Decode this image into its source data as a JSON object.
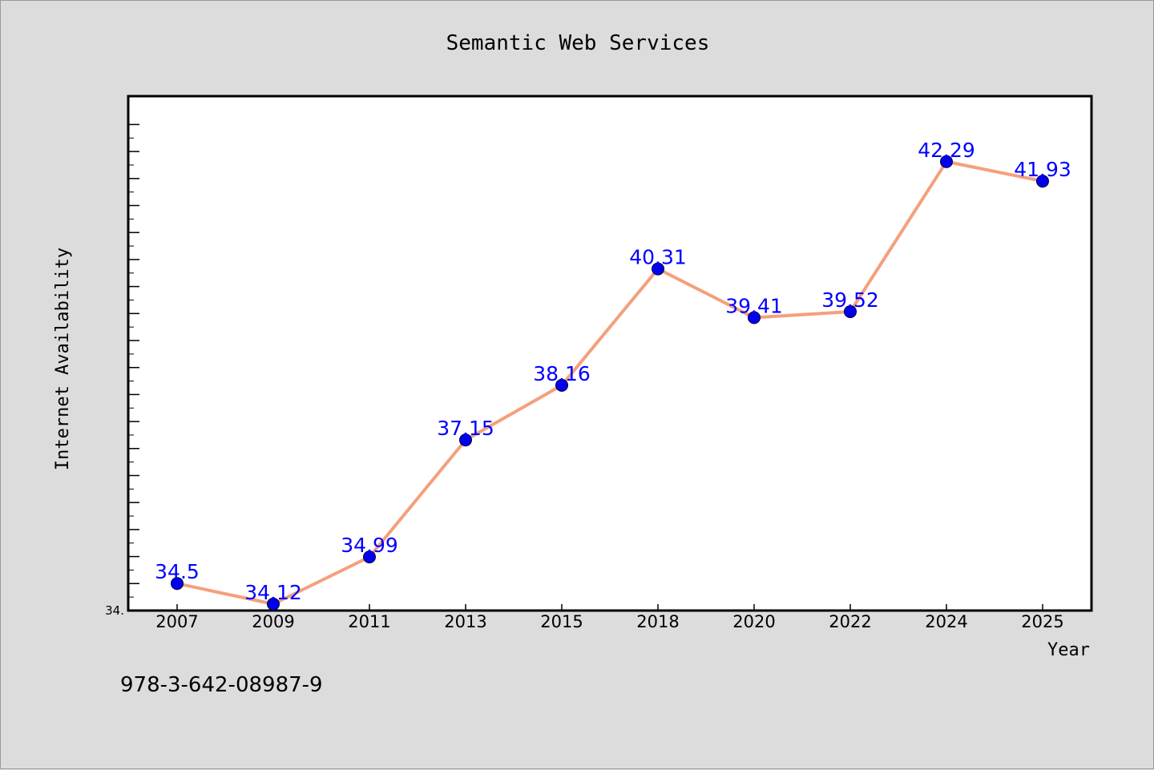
{
  "chart_data": {
    "type": "line",
    "title": "Semantic Web Services",
    "xlabel": "Year",
    "ylabel": "Internet Availability",
    "categories": [
      "2007",
      "2009",
      "2011",
      "2013",
      "2015",
      "2018",
      "2020",
      "2022",
      "2024",
      "2025"
    ],
    "series": [
      {
        "values": [
          34.5,
          34.12,
          34.99,
          37.15,
          38.16,
          40.31,
          39.41,
          39.52,
          42.29,
          41.93
        ],
        "labels": [
          "34.5",
          "34.12",
          "34.99",
          "37.15",
          "38.16",
          "40.31",
          "39.41",
          "39.52",
          "42.29",
          "41.93"
        ],
        "line_color": "#f4a07c",
        "marker_color": "#0000ee"
      }
    ],
    "ylim": [
      34.0,
      43.5
    ],
    "y_axis_min_label": "34.",
    "grid": false,
    "legend": "none"
  },
  "footer": {
    "isbn": "978-3-642-08987-9"
  }
}
